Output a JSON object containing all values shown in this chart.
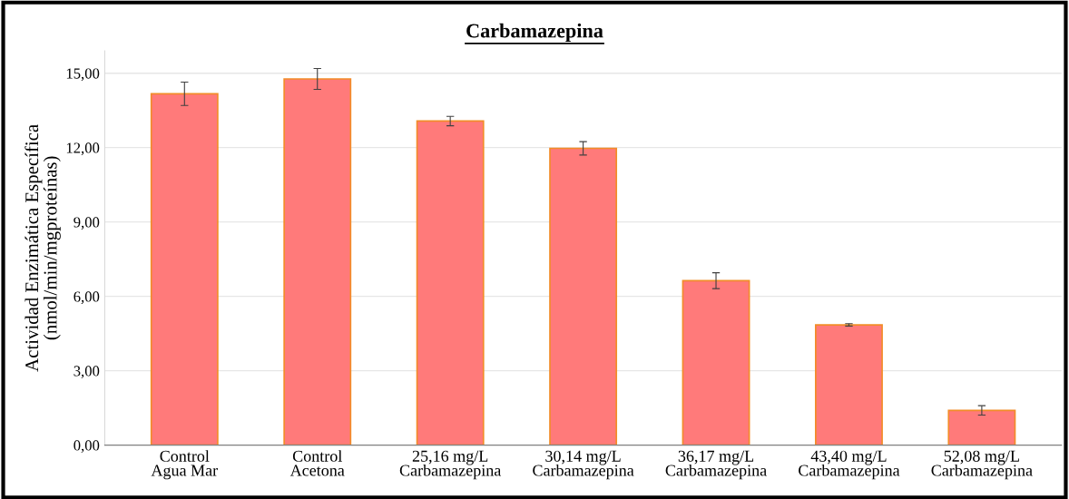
{
  "chart_data": {
    "type": "bar",
    "title": "Carbamazepina",
    "ylabel": "Actividad Enzimática Específica\n(nmol/min/mgproteínas)",
    "categories": [
      "Control\nAgua Mar",
      "Control\nAcetona",
      "25,16 mg/L\nCarbamazepina",
      "30,14 mg/L\nCarbamazepina",
      "36,17 mg/L\nCarbamazepina",
      "43,40 mg/L\nCarbamazepina",
      "52,08 mg/L\nCarbamazepina"
    ],
    "series": [
      {
        "color": "#ff7a7a",
        "values": [
          14.17,
          14.77,
          13.07,
          11.97,
          6.63,
          4.85,
          1.4
        ],
        "errors": [
          0.47,
          0.42,
          0.19,
          0.27,
          0.32,
          0.05,
          0.19
        ]
      }
    ],
    "ylim": [
      0,
      15.9
    ],
    "yticks": [
      {
        "value": 0,
        "label": "0,00"
      },
      {
        "value": 3,
        "label": "3,00"
      },
      {
        "value": 6,
        "label": "6,00"
      },
      {
        "value": 9,
        "label": "9,00"
      },
      {
        "value": 12,
        "label": "12,00"
      },
      {
        "value": 15,
        "label": "15,00"
      }
    ],
    "grid": "y",
    "legend": false
  }
}
